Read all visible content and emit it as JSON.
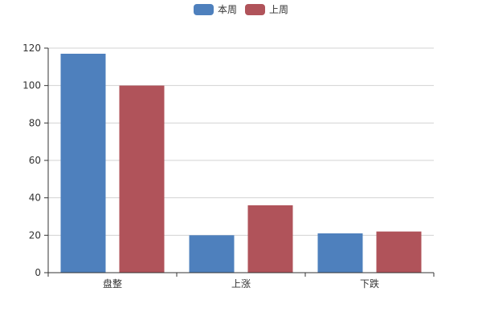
{
  "chart_data": {
    "type": "bar",
    "title": "",
    "xlabel": "",
    "ylabel": "",
    "categories": [
      "盘整",
      "上涨",
      "下跌"
    ],
    "series": [
      {
        "name": "本周",
        "values": [
          117,
          20,
          21
        ],
        "color": "#4e80bd"
      },
      {
        "name": "上周",
        "values": [
          100,
          36,
          22
        ],
        "color": "#b0535a"
      }
    ],
    "ylim": [
      0,
      120
    ],
    "yticks": [
      0,
      20,
      40,
      60,
      80,
      100,
      120
    ],
    "grid": true,
    "legend_position": "top-center"
  }
}
